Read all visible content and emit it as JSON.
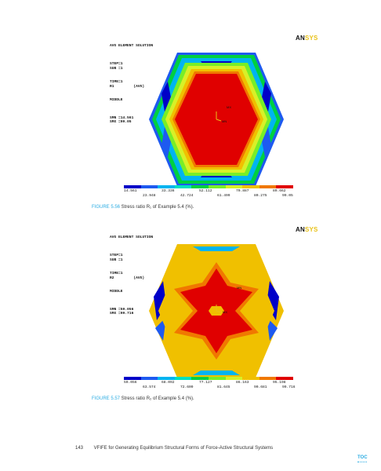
{
  "figures": [
    {
      "logo_an": "AN",
      "logo_sys": "SYS",
      "header_lines": [
        "AVG ELEMENT SOLUTION",
        "",
        "STEP=1",
        "SUB =1",
        "TIME=1",
        "R1         (AVG)",
        "MIDDLE",
        "",
        "SMN =14.561",
        "SMX =99.05"
      ],
      "node_label_a": "MX",
      "node_label_b": "MN",
      "colorbar_top": [
        "14.561",
        "33.336",
        "52.112",
        "70.887",
        "89.662"
      ],
      "colorbar_bottom": [
        "23.948",
        "42.724",
        "61.499",
        "80.275",
        "99.05"
      ],
      "caption_number": "FIGURE 5.56",
      "caption_text": " Stress ratio R₁ of Example 5.4 (%)."
    },
    {
      "logo_an": "AN",
      "logo_sys": "SYS",
      "header_lines": [
        "AVG ELEMENT SOLUTION",
        "",
        "STEP=1",
        "SUB =1",
        "TIME=1",
        "R2         (AVG)",
        "MIDDLE",
        "",
        "SMN =59.056",
        "SMX =99.716"
      ],
      "node_label_a": "MN",
      "node_label_b": "MX",
      "colorbar_top": [
        "59.056",
        "68.092",
        "77.127",
        "86.163",
        "95.198"
      ],
      "colorbar_bottom": [
        "63.574",
        "72.609",
        "81.645",
        "90.681",
        "99.716"
      ],
      "caption_number": "FIGURE 5.57",
      "caption_text": " Stress ratio R₂ of Example 5.4 (%)."
    }
  ],
  "colorbar_colors": [
    "#0000c8",
    "#1e5af0",
    "#00b4f0",
    "#00e0c0",
    "#00d040",
    "#78ee28",
    "#d8f028",
    "#f0c000",
    "#f07800",
    "#e00000"
  ],
  "footer": {
    "page_number": "143",
    "title": "VFIFE for Generating Equilibrium Structural Forms of Force-Active Structural Systems"
  },
  "toc_label": "TOC"
}
